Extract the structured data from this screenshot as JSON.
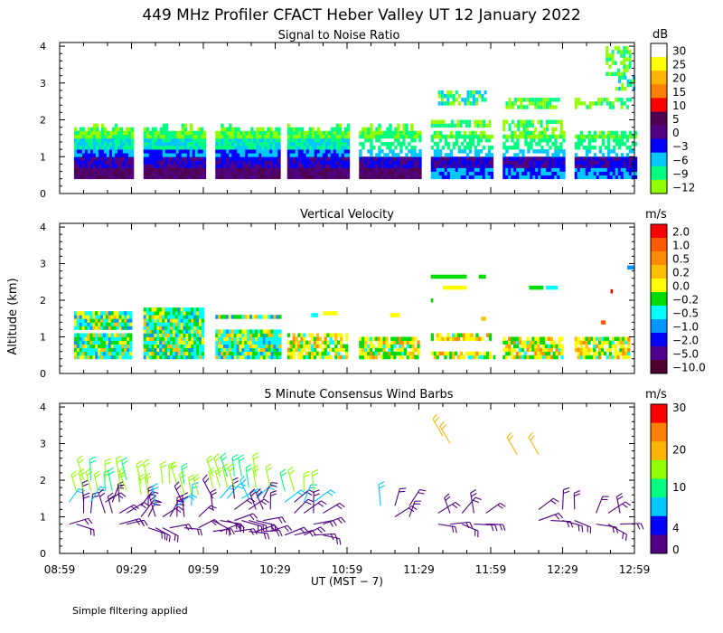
{
  "chart_data": [
    {
      "type": "heatmap",
      "title": "Signal to Noise Ratio",
      "ylabel": "Altitude (km)",
      "ylim": [
        0,
        4
      ],
      "yticks": [
        "0",
        "1",
        "2",
        "3",
        "4"
      ],
      "colorbar": {
        "unit": "dB",
        "labels": [
          "30",
          "25",
          "20",
          "15",
          "10",
          "5",
          "0",
          "−3",
          "−6",
          "−9",
          "−12"
        ],
        "colors": [
          "#ffffff",
          "#ffff00",
          "#ffb400",
          "#ff8000",
          "#ff0000",
          "#500050",
          "#500080",
          "#0000ff",
          "#00c8ff",
          "#00ff80",
          "#90ff00"
        ]
      }
    },
    {
      "type": "heatmap",
      "title": "Vertical Velocity",
      "ylabel": "Altitude (km)",
      "ylim": [
        0,
        4
      ],
      "yticks": [
        "0",
        "1",
        "2",
        "3",
        "4"
      ],
      "colorbar": {
        "unit": "m/s",
        "labels": [
          "2.0",
          "1.0",
          "0.5",
          "0.2",
          "0.0",
          "−0.2",
          "−0.5",
          "−1.0",
          "−2.0",
          "−5.0",
          "−10.0"
        ],
        "colors": [
          "#ff0000",
          "#ff5a00",
          "#ff8c00",
          "#ffbe00",
          "#ffff00",
          "#00dc00",
          "#00ffff",
          "#0096ff",
          "#0000ff",
          "#500090",
          "#500030"
        ]
      }
    },
    {
      "type": "wind-barbs",
      "title": "5 Minute Consensus Wind Barbs",
      "ylim": [
        0,
        4
      ],
      "yticks": [
        "0",
        "1",
        "2",
        "3",
        "4"
      ],
      "colorbar": {
        "unit": "m/s",
        "labels": [
          "30",
          "20",
          "10",
          "4",
          "0"
        ],
        "colors": [
          "#ff0000",
          "#ff8000",
          "#ffb400",
          "#90ff00",
          "#00ff80",
          "#00c8ff",
          "#0000ff",
          "#500080"
        ]
      }
    }
  ],
  "header": {
    "title": "449 MHz Profiler CFACT Heber Valley UT 12 January 2022"
  },
  "axis": {
    "ylabel": "Altitude (km)",
    "xlabel": "UT  (MST − 7)",
    "xticks": [
      "08:59",
      "09:29",
      "09:59",
      "10:29",
      "10:59",
      "11:29",
      "11:59",
      "12:29",
      "12:59"
    ]
  },
  "footer": {
    "note": "Simple filtering applied"
  },
  "palette": {
    "snr_blue": "#0000ff",
    "snr_cyan": "#00c8ff",
    "snr_green": "#00ff80",
    "snr_lime": "#90ff00",
    "snr_purple": "#500080",
    "vv_yellow": "#ffff00",
    "vv_green": "#00dc00",
    "vv_cyan": "#00ffff",
    "barb_purple": "#500080",
    "barb_green": "#00ff80",
    "barb_orange": "#ffb400"
  }
}
